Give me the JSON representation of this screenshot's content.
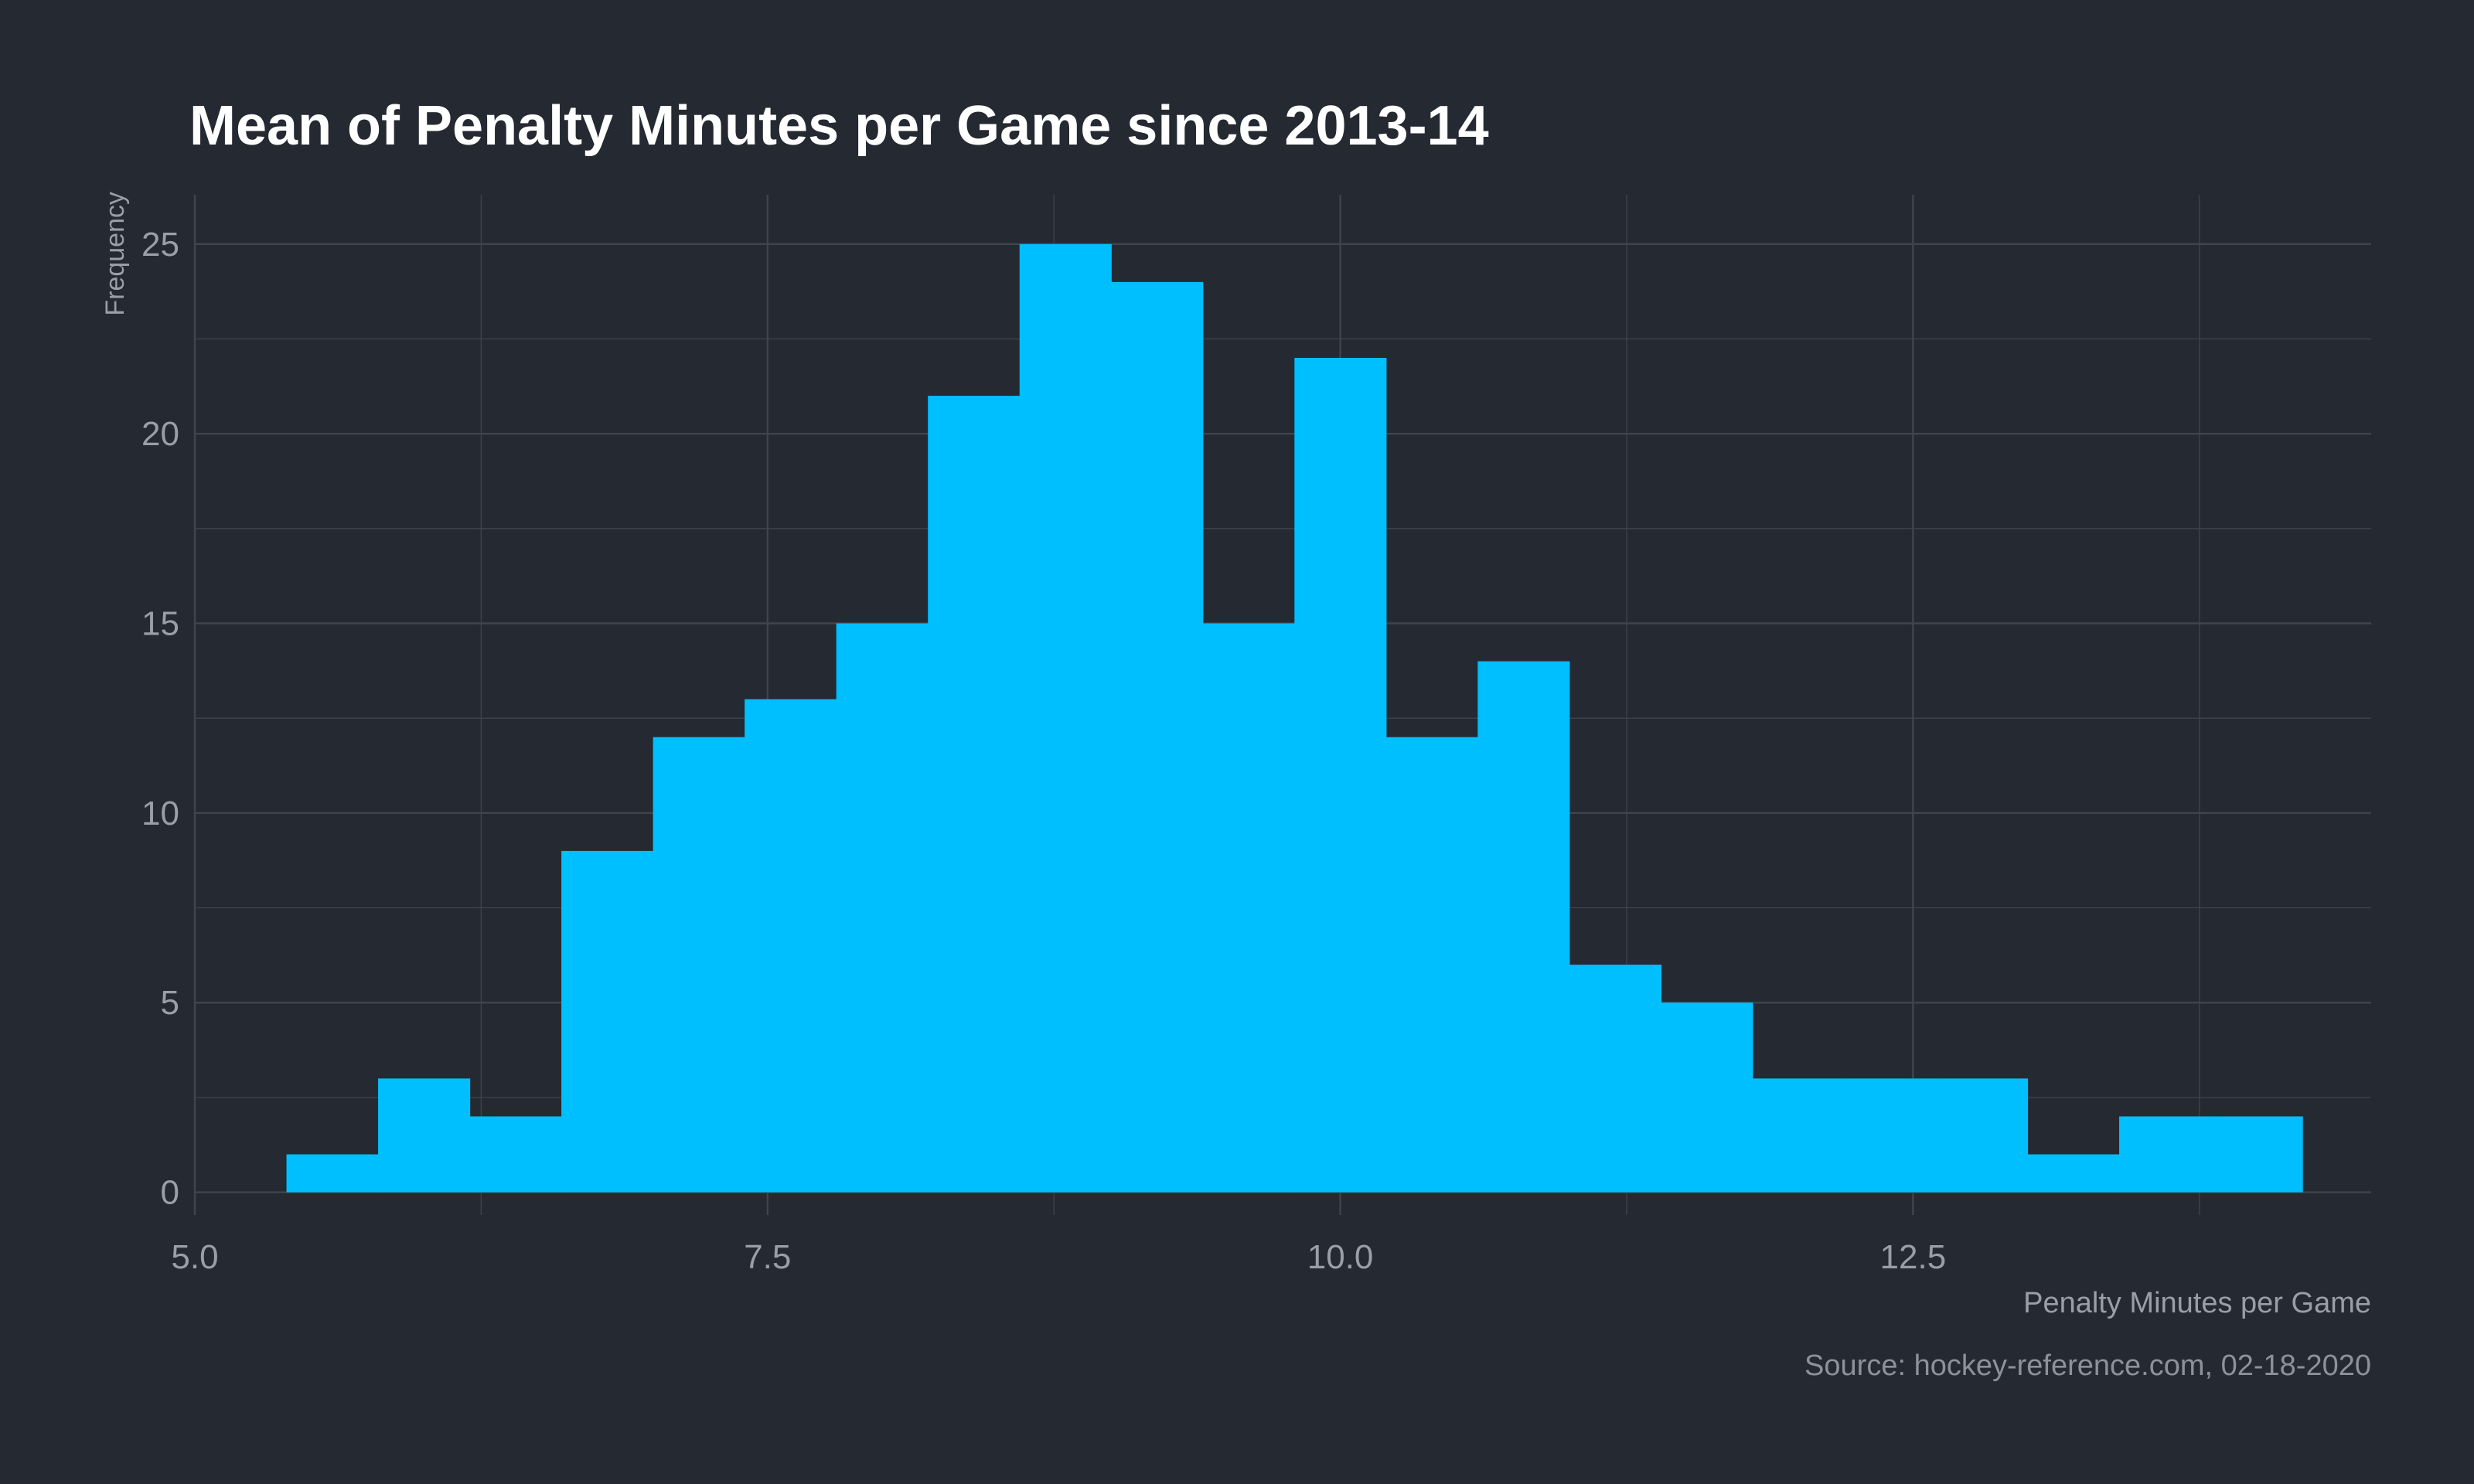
{
  "chart_data": {
    "type": "bar",
    "subtype": "histogram",
    "title": "Mean of Penalty Minutes per Game since 2013-14",
    "xlabel": "Penalty Minutes per Game",
    "ylabel": "Frequency",
    "caption": "Source: hockey-reference.com, 02-18-2020",
    "xlim": [
      5.0,
      14.5
    ],
    "ylim": [
      -0.6,
      26.3
    ],
    "x_ticks": [
      "5.0",
      "7.5",
      "10.0",
      "12.5"
    ],
    "x_tick_values": [
      5.0,
      7.5,
      10.0,
      12.5
    ],
    "y_ticks": [
      "0",
      "5",
      "10",
      "15",
      "20",
      "25"
    ],
    "y_tick_values": [
      0,
      5,
      10,
      15,
      20,
      25
    ],
    "bin_edges": [
      5.4,
      5.8,
      6.2,
      6.6,
      7.0,
      7.4,
      7.8,
      8.2,
      8.6,
      9.0,
      9.4,
      9.8,
      10.2,
      10.6,
      11.0,
      11.4,
      11.8,
      12.2,
      12.6,
      13.0,
      13.4,
      13.8,
      14.2
    ],
    "values": [
      1,
      3,
      2,
      9,
      12,
      13,
      15,
      21,
      25,
      24,
      15,
      22,
      12,
      14,
      6,
      5,
      3,
      3,
      3,
      1,
      2,
      2
    ],
    "grid": true,
    "bar_color": "#00bfff",
    "grid_color": "#3f444d",
    "background_color": "#252932"
  }
}
